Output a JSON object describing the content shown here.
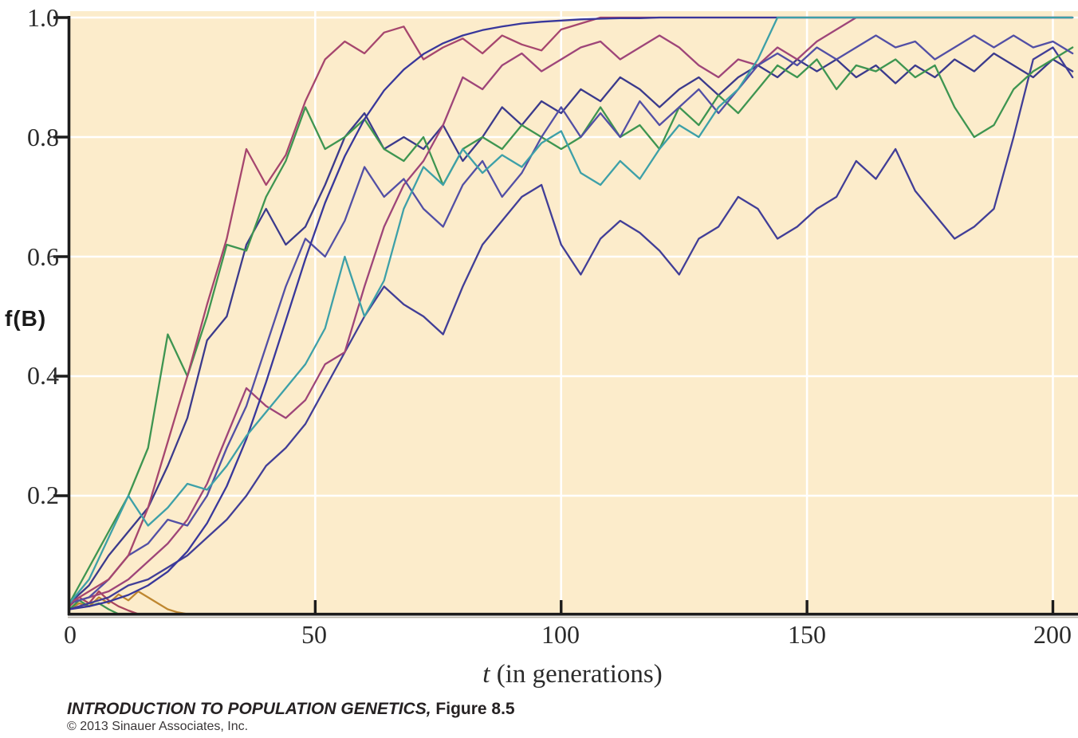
{
  "figure": {
    "caption_book": "INTRODUCTION TO POPULATION GENETICS,",
    "caption_fig": " Figure 8.5",
    "copyright": "© 2013 Sinauer Associates, Inc."
  },
  "chart_data": {
    "type": "line",
    "title": "",
    "xlabel_var": "t",
    "xlabel_rest": " (in generations)",
    "ylabel_f": "f(",
    "ylabel_b": "B",
    "ylabel_close": ")",
    "xlim": [
      0,
      205
    ],
    "ylim": [
      0,
      1.0
    ],
    "x_ticks": [
      0,
      50,
      100,
      150,
      200
    ],
    "x_tick_labels": [
      "0",
      "50",
      "100",
      "150",
      "200"
    ],
    "y_ticks": [
      1.0,
      0.8,
      0.6,
      0.4,
      0.2
    ],
    "y_tick_labels": [
      "1.0",
      "0.8",
      "0.6",
      "0.4",
      "0.2"
    ],
    "x_gridlines": [
      50,
      100,
      150,
      200
    ],
    "y_gridlines": [
      0.2,
      0.4,
      0.6,
      0.8,
      1.0
    ],
    "grid": "on",
    "legend": "none",
    "plot_bg_color": "#fceccb",
    "gridline_color": "#ffffff",
    "axis_color": "#1c1c1c",
    "x": [
      0,
      4,
      8,
      12,
      16,
      20,
      24,
      28,
      32,
      36,
      40,
      44,
      48,
      52,
      56,
      60,
      64,
      68,
      72,
      76,
      80,
      84,
      88,
      92,
      96,
      100,
      104,
      108,
      112,
      116,
      120,
      124,
      128,
      132,
      136,
      140,
      144,
      148,
      152,
      156,
      160,
      164,
      168,
      172,
      176,
      180,
      184,
      188,
      192,
      196,
      200,
      204
    ],
    "series": [
      {
        "name": "lost-replicate-orange",
        "color": "#bf8730",
        "x": [
          0,
          2,
          4,
          6,
          8,
          10,
          12,
          14,
          16,
          18,
          20,
          22,
          24
        ],
        "values": [
          0.01,
          0.02,
          0.015,
          0.03,
          0.02,
          0.035,
          0.025,
          0.04,
          0.03,
          0.02,
          0.01,
          0.005,
          0.002
        ]
      },
      {
        "name": "lost-replicate-red",
        "color": "#a8455e",
        "x": [
          0,
          2,
          4,
          6,
          8,
          10,
          12,
          14
        ],
        "values": [
          0.015,
          0.03,
          0.02,
          0.04,
          0.025,
          0.015,
          0.008,
          0.002
        ]
      },
      {
        "name": "lost-replicate-green",
        "color": "#3e9551",
        "x": [
          0,
          2,
          4,
          6,
          8,
          10
        ],
        "values": [
          0.01,
          0.025,
          0.015,
          0.02,
          0.01,
          0.002
        ]
      },
      {
        "name": "replicate-navy-steady",
        "color": "#3b3a8c",
        "values": [
          0.02,
          0.05,
          0.1,
          0.14,
          0.18,
          0.25,
          0.33,
          0.46,
          0.5,
          0.62,
          0.68,
          0.62,
          0.65,
          0.72,
          0.8,
          0.84,
          0.78,
          0.8,
          0.78,
          0.82,
          0.76,
          0.8,
          0.85,
          0.82,
          0.86,
          0.84,
          0.88,
          0.86,
          0.9,
          0.88,
          0.85,
          0.88,
          0.9,
          0.87,
          0.9,
          0.92,
          0.9,
          0.93,
          0.91,
          0.93,
          0.9,
          0.92,
          0.89,
          0.92,
          0.9,
          0.93,
          0.91,
          0.94,
          0.92,
          0.9,
          0.93,
          0.91
        ]
      },
      {
        "name": "replicate-navy-laggard",
        "color": "#413e97",
        "values": [
          0.01,
          0.02,
          0.03,
          0.05,
          0.06,
          0.08,
          0.1,
          0.13,
          0.16,
          0.2,
          0.25,
          0.28,
          0.32,
          0.38,
          0.44,
          0.5,
          0.55,
          0.52,
          0.5,
          0.47,
          0.55,
          0.62,
          0.66,
          0.7,
          0.72,
          0.62,
          0.57,
          0.63,
          0.66,
          0.64,
          0.61,
          0.57,
          0.63,
          0.65,
          0.7,
          0.68,
          0.63,
          0.65,
          0.68,
          0.7,
          0.76,
          0.73,
          0.78,
          0.71,
          0.67,
          0.63,
          0.65,
          0.68,
          0.8,
          0.93,
          0.95,
          0.9
        ]
      },
      {
        "name": "replicate-green",
        "color": "#3e9551",
        "values": [
          0.02,
          0.08,
          0.14,
          0.2,
          0.28,
          0.47,
          0.4,
          0.5,
          0.62,
          0.61,
          0.7,
          0.76,
          0.85,
          0.78,
          0.8,
          0.83,
          0.78,
          0.76,
          0.8,
          0.72,
          0.78,
          0.8,
          0.78,
          0.82,
          0.8,
          0.78,
          0.8,
          0.85,
          0.8,
          0.82,
          0.78,
          0.85,
          0.82,
          0.87,
          0.84,
          0.88,
          0.92,
          0.9,
          0.93,
          0.88,
          0.92,
          0.91,
          0.93,
          0.9,
          0.92,
          0.85,
          0.8,
          0.82,
          0.88,
          0.91,
          0.93,
          0.95
        ]
      },
      {
        "name": "replicate-crimson-late",
        "color": "#9e4579",
        "values": [
          0.02,
          0.03,
          0.04,
          0.06,
          0.09,
          0.12,
          0.16,
          0.22,
          0.3,
          0.38,
          0.35,
          0.33,
          0.36,
          0.42,
          0.44,
          0.55,
          0.65,
          0.72,
          0.76,
          0.82,
          0.9,
          0.88,
          0.92,
          0.94,
          0.91,
          0.93,
          0.95,
          0.96,
          0.93,
          0.95,
          0.97,
          0.95,
          0.92,
          0.9,
          0.93,
          0.92,
          0.95,
          0.93,
          0.96,
          0.98,
          1,
          1,
          1,
          1,
          1,
          1,
          1,
          1,
          1,
          1,
          1,
          1
        ]
      },
      {
        "name": "replicate-indigo",
        "color": "#524fa5",
        "values": [
          0.02,
          0.03,
          0.06,
          0.1,
          0.12,
          0.16,
          0.15,
          0.2,
          0.28,
          0.35,
          0.45,
          0.55,
          0.63,
          0.6,
          0.66,
          0.75,
          0.7,
          0.73,
          0.68,
          0.65,
          0.72,
          0.76,
          0.7,
          0.74,
          0.8,
          0.85,
          0.8,
          0.84,
          0.8,
          0.86,
          0.82,
          0.85,
          0.88,
          0.84,
          0.88,
          0.92,
          0.94,
          0.92,
          0.95,
          0.93,
          0.95,
          0.97,
          0.95,
          0.96,
          0.93,
          0.95,
          0.97,
          0.95,
          0.97,
          0.95,
          0.96,
          0.94
        ]
      },
      {
        "name": "replicate-crimson-fast",
        "color": "#a6466e",
        "values": [
          0.02,
          0.04,
          0.06,
          0.1,
          0.18,
          0.29,
          0.4,
          0.52,
          0.63,
          0.78,
          0.72,
          0.77,
          0.86,
          0.93,
          0.96,
          0.94,
          0.975,
          0.985,
          0.93,
          0.95,
          0.965,
          0.94,
          0.97,
          0.955,
          0.945,
          0.98,
          0.99,
          1,
          1,
          1,
          1,
          1,
          1,
          1,
          1,
          1,
          1,
          1,
          1,
          1,
          1,
          1,
          1,
          1,
          1,
          1,
          1,
          1,
          1,
          1,
          1,
          1
        ]
      },
      {
        "name": "deterministic-expectation",
        "color": "#38379b",
        "values": [
          0.01,
          0.015,
          0.023,
          0.034,
          0.05,
          0.073,
          0.107,
          0.154,
          0.216,
          0.295,
          0.39,
          0.493,
          0.596,
          0.69,
          0.768,
          0.83,
          0.878,
          0.913,
          0.939,
          0.957,
          0.97,
          0.979,
          0.985,
          0.99,
          0.993,
          0.995,
          0.997,
          0.998,
          0.999,
          0.999,
          1,
          1,
          1,
          1,
          1,
          1,
          1,
          1,
          1,
          1,
          1,
          1,
          1,
          1,
          1,
          1,
          1,
          1,
          1,
          1,
          1,
          1
        ]
      },
      {
        "name": "replicate-teal",
        "color": "#3da0a8",
        "values": [
          0.02,
          0.06,
          0.13,
          0.2,
          0.15,
          0.18,
          0.22,
          0.21,
          0.25,
          0.3,
          0.34,
          0.38,
          0.42,
          0.48,
          0.6,
          0.5,
          0.56,
          0.68,
          0.75,
          0.72,
          0.78,
          0.74,
          0.77,
          0.75,
          0.79,
          0.81,
          0.74,
          0.72,
          0.76,
          0.73,
          0.78,
          0.82,
          0.8,
          0.85,
          0.88,
          0.93,
          1,
          1,
          1,
          1,
          1,
          1,
          1,
          1,
          1,
          1,
          1,
          1,
          1,
          1,
          1,
          1
        ]
      }
    ]
  }
}
